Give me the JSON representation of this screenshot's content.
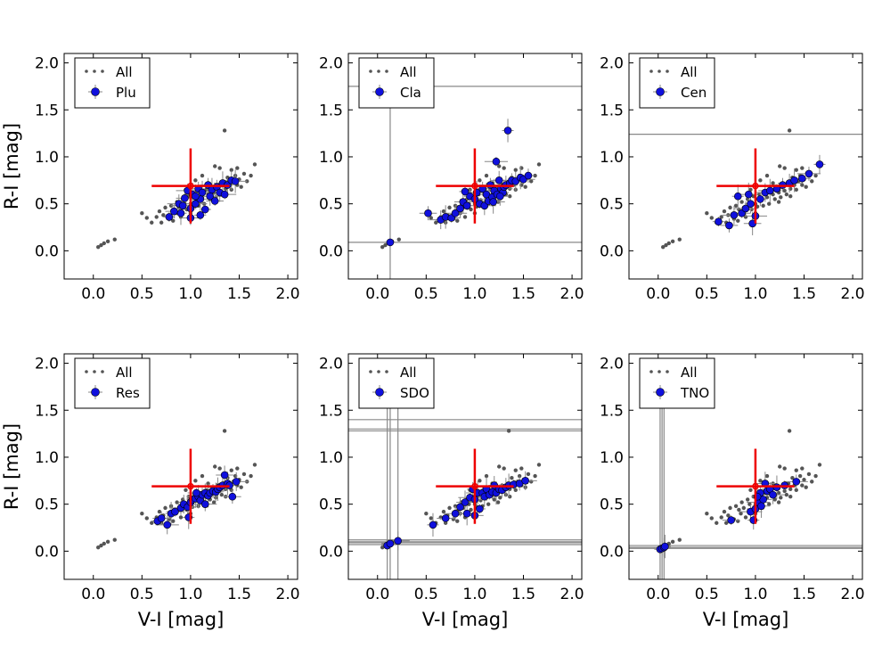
{
  "figure": {
    "xlabel": "V-I [mag]",
    "ylabel": "R-I [mag]",
    "xticks": [
      "0.0",
      "0.5",
      "1.0",
      "1.5",
      "2.0"
    ],
    "yticks": [
      "0.0",
      "0.5",
      "1.0",
      "1.5",
      "2.0"
    ],
    "xlim": [
      -0.3,
      2.1
    ],
    "ylim": [
      -0.3,
      2.1
    ],
    "colors": {
      "all_points": "#555555",
      "group_points": "#1010dd",
      "errorbar": "#888888",
      "reference": "#ee0000"
    },
    "reference_point": {
      "x": 1.0,
      "y": 0.69,
      "xerr": 0.4,
      "yerr_low": 0.4,
      "yerr_high": 0.4
    }
  },
  "chart_data": [
    {
      "type": "scatter",
      "panel": "Plu",
      "xlabel": "",
      "ylabel": "R-I [mag]",
      "legend": [
        "All",
        "Plu"
      ],
      "legend_position": "top-left",
      "series": [
        {
          "name": "Plu",
          "points": [
            [
              0.78,
              0.36
            ],
            [
              0.83,
              0.42
            ],
            [
              0.88,
              0.5
            ],
            [
              0.9,
              0.4
            ],
            [
              0.94,
              0.56
            ],
            [
              0.97,
              0.64
            ],
            [
              1.0,
              0.45
            ],
            [
              1.02,
              0.6
            ],
            [
              1.05,
              0.5
            ],
            [
              1.08,
              0.66
            ],
            [
              1.1,
              0.55
            ],
            [
              1.12,
              0.62
            ],
            [
              1.15,
              0.44
            ],
            [
              1.18,
              0.7
            ],
            [
              1.2,
              0.58
            ],
            [
              1.22,
              0.65
            ],
            [
              1.25,
              0.53
            ],
            [
              1.27,
              0.68
            ],
            [
              1.3,
              0.62
            ],
            [
              1.33,
              0.72
            ],
            [
              1.35,
              0.6
            ],
            [
              1.38,
              0.7
            ],
            [
              1.42,
              0.75
            ],
            [
              1.46,
              0.74
            ],
            [
              1.1,
              0.38
            ],
            [
              1.0,
              0.35
            ],
            [
              0.92,
              0.48
            ],
            [
              1.05,
              0.58
            ]
          ]
        }
      ],
      "hlines": [],
      "vlines": []
    },
    {
      "type": "scatter",
      "panel": "Cla",
      "xlabel": "",
      "ylabel": "",
      "legend": [
        "All",
        "Cla"
      ],
      "legend_position": "top-left",
      "series": [
        {
          "name": "Cla",
          "points": [
            [
              0.13,
              0.09
            ],
            [
              0.52,
              0.4
            ],
            [
              0.65,
              0.33
            ],
            [
              0.7,
              0.36
            ],
            [
              0.76,
              0.35
            ],
            [
              0.8,
              0.4
            ],
            [
              0.85,
              0.45
            ],
            [
              0.88,
              0.52
            ],
            [
              0.92,
              0.48
            ],
            [
              0.95,
              0.58
            ],
            [
              1.0,
              0.55
            ],
            [
              1.02,
              0.62
            ],
            [
              1.05,
              0.5
            ],
            [
              1.08,
              0.66
            ],
            [
              1.1,
              0.48
            ],
            [
              1.12,
              0.6
            ],
            [
              1.14,
              0.53
            ],
            [
              1.16,
              0.7
            ],
            [
              1.18,
              0.57
            ],
            [
              1.2,
              0.64
            ],
            [
              1.22,
              0.95
            ],
            [
              1.23,
              0.6
            ],
            [
              1.25,
              0.75
            ],
            [
              1.27,
              0.66
            ],
            [
              1.29,
              0.62
            ],
            [
              1.3,
              0.68
            ],
            [
              1.32,
              0.7
            ],
            [
              1.34,
              1.28
            ],
            [
              1.36,
              0.72
            ],
            [
              1.38,
              0.75
            ],
            [
              1.42,
              0.74
            ],
            [
              1.47,
              0.78
            ],
            [
              1.5,
              0.76
            ],
            [
              1.55,
              0.8
            ],
            [
              1.26,
              0.58
            ],
            [
              1.19,
              0.52
            ],
            [
              0.9,
              0.63
            ]
          ]
        }
      ],
      "hlines": [
        1.75,
        0.09
      ],
      "vlines": [
        0.13
      ]
    },
    {
      "type": "scatter",
      "panel": "Cen",
      "xlabel": "",
      "ylabel": "",
      "legend": [
        "All",
        "Cen"
      ],
      "legend_position": "top-left",
      "series": [
        {
          "name": "Cen",
          "points": [
            [
              0.62,
              0.31
            ],
            [
              0.73,
              0.27
            ],
            [
              0.78,
              0.38
            ],
            [
              0.82,
              0.58
            ],
            [
              0.86,
              0.4
            ],
            [
              0.9,
              0.45
            ],
            [
              0.95,
              0.5
            ],
            [
              0.97,
              0.29
            ],
            [
              1.0,
              0.37
            ],
            [
              1.05,
              0.55
            ],
            [
              1.1,
              0.62
            ],
            [
              1.15,
              0.64
            ],
            [
              1.22,
              0.66
            ],
            [
              1.28,
              0.7
            ],
            [
              1.35,
              0.72
            ],
            [
              1.4,
              0.75
            ],
            [
              1.48,
              0.77
            ],
            [
              1.55,
              0.82
            ],
            [
              1.66,
              0.92
            ],
            [
              0.93,
              0.6
            ]
          ]
        }
      ],
      "hlines": [
        1.24
      ],
      "vlines": []
    },
    {
      "type": "scatter",
      "panel": "Res",
      "xlabel": "V-I [mag]",
      "ylabel": "R-I [mag]",
      "legend": [
        "All",
        "Res"
      ],
      "legend_position": "top-left",
      "series": [
        {
          "name": "Res",
          "points": [
            [
              0.66,
              0.32
            ],
            [
              0.7,
              0.35
            ],
            [
              0.76,
              0.28
            ],
            [
              0.8,
              0.4
            ],
            [
              0.84,
              0.42
            ],
            [
              0.9,
              0.46
            ],
            [
              0.93,
              0.5
            ],
            [
              0.97,
              0.47
            ],
            [
              1.0,
              0.52
            ],
            [
              1.02,
              0.55
            ],
            [
              1.05,
              0.56
            ],
            [
              1.08,
              0.58
            ],
            [
              1.1,
              0.54
            ],
            [
              1.12,
              0.6
            ],
            [
              1.15,
              0.62
            ],
            [
              1.18,
              0.59
            ],
            [
              1.2,
              0.62
            ],
            [
              1.23,
              0.64
            ],
            [
              1.26,
              0.63
            ],
            [
              1.28,
              0.66
            ],
            [
              1.3,
              0.68
            ],
            [
              1.33,
              0.7
            ],
            [
              1.35,
              0.81
            ],
            [
              1.38,
              0.72
            ],
            [
              1.4,
              0.7
            ],
            [
              1.43,
              0.58
            ],
            [
              1.47,
              0.74
            ],
            [
              0.98,
              0.36
            ],
            [
              1.06,
              0.62
            ],
            [
              1.15,
              0.5
            ]
          ]
        }
      ],
      "hlines": [],
      "vlines": []
    },
    {
      "type": "scatter",
      "panel": "SDO",
      "xlabel": "V-I [mag]",
      "ylabel": "",
      "legend": [
        "All",
        "SDO"
      ],
      "legend_position": "top-left",
      "series": [
        {
          "name": "SDO",
          "points": [
            [
              0.1,
              0.06
            ],
            [
              0.13,
              0.08
            ],
            [
              0.21,
              0.11
            ],
            [
              0.57,
              0.28
            ],
            [
              0.7,
              0.35
            ],
            [
              0.8,
              0.4
            ],
            [
              0.85,
              0.47
            ],
            [
              0.9,
              0.52
            ],
            [
              0.95,
              0.57
            ],
            [
              0.98,
              0.66
            ],
            [
              1.0,
              0.55
            ],
            [
              1.03,
              0.62
            ],
            [
              1.05,
              0.45
            ],
            [
              1.08,
              0.62
            ],
            [
              1.1,
              0.58
            ],
            [
              1.12,
              0.66
            ],
            [
              1.15,
              0.6
            ],
            [
              1.18,
              0.63
            ],
            [
              1.2,
              0.7
            ],
            [
              1.22,
              0.62
            ],
            [
              1.25,
              0.66
            ],
            [
              1.28,
              0.65
            ],
            [
              1.32,
              0.68
            ],
            [
              1.35,
              0.7
            ],
            [
              1.4,
              0.71
            ],
            [
              1.46,
              0.72
            ],
            [
              1.52,
              0.75
            ],
            [
              0.92,
              0.4
            ],
            [
              1.0,
              0.38
            ]
          ]
        }
      ],
      "hlines": [
        1.4,
        1.3,
        1.28,
        0.12,
        0.1,
        0.09,
        0.07
      ],
      "vlines": [
        0.1,
        0.13,
        0.21
      ]
    },
    {
      "type": "scatter",
      "panel": "TNO",
      "xlabel": "V-I [mag]",
      "ylabel": "",
      "legend": [
        "All",
        "TNO"
      ],
      "legend_position": "top-left",
      "series": [
        {
          "name": "TNO",
          "points": [
            [
              0.02,
              0.02
            ],
            [
              0.04,
              0.03
            ],
            [
              0.06,
              0.04
            ],
            [
              0.07,
              0.05
            ],
            [
              0.75,
              0.33
            ],
            [
              0.95,
              0.42
            ],
            [
              0.98,
              0.33
            ],
            [
              1.0,
              0.45
            ],
            [
              1.03,
              0.52
            ],
            [
              1.05,
              0.62
            ],
            [
              1.08,
              0.55
            ],
            [
              1.1,
              0.72
            ],
            [
              1.12,
              0.64
            ],
            [
              1.15,
              0.66
            ],
            [
              1.18,
              0.6
            ],
            [
              1.22,
              0.68
            ],
            [
              1.3,
              0.7
            ],
            [
              1.42,
              0.74
            ],
            [
              1.02,
              0.58
            ],
            [
              1.06,
              0.48
            ]
          ]
        }
      ],
      "hlines": [
        0.06,
        0.04,
        0.03
      ],
      "vlines": [
        0.02,
        0.04,
        0.06
      ]
    }
  ],
  "background_all": [
    [
      0.05,
      0.04
    ],
    [
      0.08,
      0.06
    ],
    [
      0.11,
      0.08
    ],
    [
      0.15,
      0.1
    ],
    [
      0.22,
      0.12
    ],
    [
      0.5,
      0.4
    ],
    [
      0.55,
      0.35
    ],
    [
      0.6,
      0.3
    ],
    [
      0.65,
      0.36
    ],
    [
      0.68,
      0.42
    ],
    [
      0.72,
      0.38
    ],
    [
      0.74,
      0.46
    ],
    [
      0.78,
      0.34
    ],
    [
      0.8,
      0.48
    ],
    [
      0.83,
      0.44
    ],
    [
      0.85,
      0.4
    ],
    [
      0.86,
      0.52
    ],
    [
      0.88,
      0.46
    ],
    [
      0.9,
      0.36
    ],
    [
      0.92,
      0.55
    ],
    [
      0.94,
      0.5
    ],
    [
      0.96,
      0.44
    ],
    [
      0.98,
      0.58
    ],
    [
      1.0,
      0.5
    ],
    [
      1.02,
      0.47
    ],
    [
      1.04,
      0.6
    ],
    [
      1.06,
      0.54
    ],
    [
      1.08,
      0.48
    ],
    [
      1.1,
      0.62
    ],
    [
      1.12,
      0.57
    ],
    [
      1.14,
      0.5
    ],
    [
      1.16,
      0.65
    ],
    [
      1.18,
      0.6
    ],
    [
      1.2,
      0.55
    ],
    [
      1.22,
      0.68
    ],
    [
      1.24,
      0.62
    ],
    [
      1.26,
      0.57
    ],
    [
      1.28,
      0.7
    ],
    [
      1.3,
      0.64
    ],
    [
      1.32,
      0.6
    ],
    [
      1.34,
      0.72
    ],
    [
      1.36,
      0.66
    ],
    [
      1.38,
      0.78
    ],
    [
      1.4,
      0.7
    ],
    [
      1.42,
      0.65
    ],
    [
      1.44,
      0.74
    ],
    [
      1.46,
      0.8
    ],
    [
      1.48,
      0.7
    ],
    [
      1.5,
      0.76
    ],
    [
      1.52,
      0.68
    ],
    [
      1.55,
      0.82
    ],
    [
      1.58,
      0.74
    ],
    [
      1.62,
      0.8
    ],
    [
      1.66,
      0.92
    ],
    [
      1.35,
      1.28
    ],
    [
      1.25,
      0.9
    ],
    [
      1.3,
      0.88
    ],
    [
      1.12,
      0.8
    ],
    [
      1.05,
      0.75
    ],
    [
      0.95,
      0.65
    ],
    [
      1.18,
      0.72
    ],
    [
      1.42,
      0.86
    ],
    [
      1.48,
      0.88
    ],
    [
      0.7,
      0.3
    ],
    [
      0.82,
      0.32
    ],
    [
      1.0,
      0.4
    ],
    [
      1.24,
      0.52
    ],
    [
      1.36,
      0.58
    ]
  ]
}
